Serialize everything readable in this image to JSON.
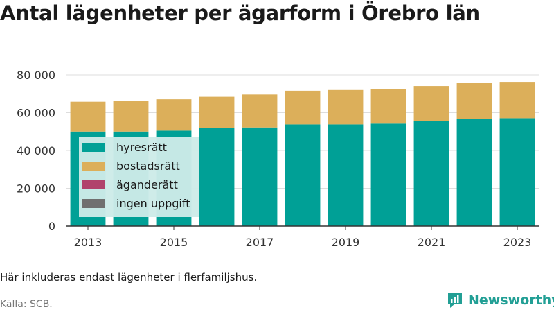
{
  "title": "Antal lägenheter per ägarform i Örebro län",
  "note": "Här inkluderas endast lägenheter i flerfamiljshus.",
  "source": "Källa: SCB.",
  "brand": "Newsworthy",
  "colors": {
    "hyresratt": "#00a096",
    "bostadsratt": "#dcaf5a",
    "aganderatt": "#b1436c",
    "ingen_uppgift": "#707070",
    "legend_bg": "#cdebe8",
    "grid": "#dddddd",
    "axis": "#333333",
    "brand": "#229f95"
  },
  "chart_data": {
    "type": "bar",
    "stacked": true,
    "categories": [
      "2013",
      "2014",
      "2015",
      "2016",
      "2017",
      "2018",
      "2019",
      "2020",
      "2021",
      "2022",
      "2023"
    ],
    "x_tick_labels": [
      "2013",
      "2015",
      "2017",
      "2019",
      "2021",
      "2023"
    ],
    "series": [
      {
        "name": "hyresrätt",
        "color_key": "hyresratt",
        "values": [
          50000,
          50000,
          50500,
          51800,
          52200,
          53800,
          53800,
          54200,
          55500,
          56700,
          57100
        ]
      },
      {
        "name": "bostadsrätt",
        "color_key": "bostadsratt",
        "values": [
          15800,
          16300,
          16600,
          16600,
          17400,
          17800,
          18200,
          18400,
          18600,
          19100,
          19200
        ]
      },
      {
        "name": "äganderätt",
        "color_key": "aganderatt",
        "values": [
          0,
          0,
          0,
          0,
          0,
          0,
          0,
          0,
          0,
          0,
          0
        ]
      },
      {
        "name": "ingen uppgift",
        "color_key": "ingen_uppgift",
        "values": [
          0,
          0,
          0,
          0,
          0,
          0,
          0,
          0,
          0,
          0,
          0
        ]
      }
    ],
    "ylim": [
      0,
      80000
    ],
    "y_ticks": [
      0,
      20000,
      40000,
      60000,
      80000
    ],
    "y_tick_labels": [
      "0",
      "20 000",
      "40 000",
      "60 000",
      "80 000"
    ],
    "grid": true,
    "legend_position": "left-inside"
  }
}
